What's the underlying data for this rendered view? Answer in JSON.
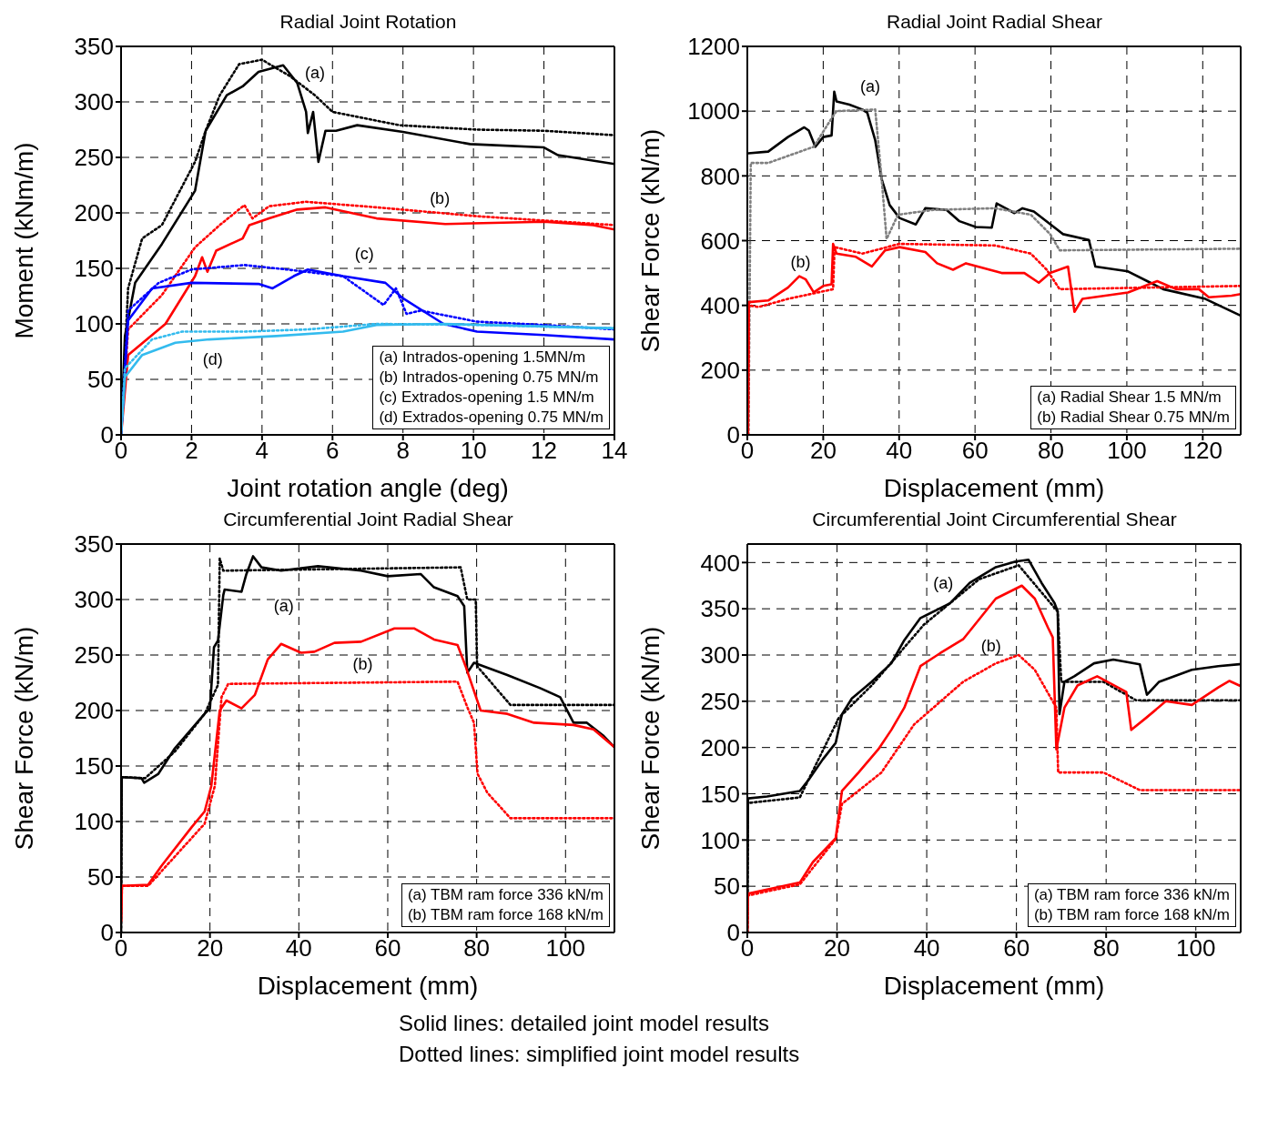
{
  "chart_data": [
    {
      "type": "line",
      "title": "Radial Joint Rotation",
      "xlabel": "Joint rotation angle (deg)",
      "ylabel": "Moment (kNm/m)",
      "xlim": [
        0,
        14
      ],
      "ylim": [
        0,
        350
      ],
      "xticks": [
        0,
        2,
        4,
        6,
        8,
        10,
        12,
        14
      ],
      "yticks": [
        0,
        50,
        100,
        150,
        200,
        250,
        300,
        350
      ],
      "grid": true,
      "series": [
        {
          "color": "#000000",
          "line_style": "solid",
          "x": [
            0,
            0.11,
            0.4,
            1.16,
            2.1,
            2.4,
            3.0,
            3.45,
            3.9,
            4.6,
            5.0,
            5.25,
            5.3,
            5.45,
            5.6,
            5.8,
            6.1,
            6.7,
            8.0,
            9.9,
            12.0,
            12.4,
            14
          ],
          "values": [
            0,
            89,
            137,
            172,
            220,
            274,
            306,
            314,
            327,
            333,
            317,
            291,
            272,
            291,
            246,
            274,
            274,
            279,
            273,
            262,
            259,
            252,
            244
          ]
        },
        {
          "color": "#000000",
          "line_style": "dotted",
          "x": [
            0,
            0.2,
            0.6,
            1.16,
            2.1,
            2.4,
            2.8,
            3.35,
            4.0,
            4.8,
            5.5,
            6.0,
            7.9,
            10.1,
            12,
            14
          ],
          "values": [
            0,
            132,
            177,
            189,
            246,
            274,
            306,
            334,
            338,
            323,
            306,
            291,
            279,
            275,
            274,
            270
          ]
        },
        {
          "color": "#ff0000",
          "line_style": "solid",
          "x": [
            0,
            0.2,
            1.26,
            2.1,
            2.3,
            2.45,
            2.7,
            3.45,
            3.64,
            4.2,
            5.0,
            5.8,
            7.25,
            9.2,
            12,
            13.4,
            14
          ],
          "values": [
            0,
            72,
            100,
            143,
            160,
            147,
            166,
            177,
            189,
            195,
            203,
            205,
            195,
            190,
            192,
            189,
            185
          ]
        },
        {
          "color": "#ff0000",
          "line_style": "dotted",
          "x": [
            0,
            0.2,
            1.16,
            2.1,
            2.8,
            3.5,
            3.73,
            4.2,
            5.25,
            7.25,
            10.1,
            14
          ],
          "values": [
            0,
            95,
            126,
            169,
            189,
            207,
            195,
            206,
            210,
            205,
            197,
            189
          ]
        },
        {
          "color": "#0000ff",
          "line_style": "solid",
          "x": [
            0,
            0.2,
            0.88,
            2.0,
            3.9,
            4.3,
            4.9,
            5.3,
            6.3,
            7.5,
            8.0,
            8.7,
            9.15,
            10.1,
            12,
            14
          ],
          "values": [
            0,
            103,
            132,
            137,
            136,
            132,
            143,
            149,
            143,
            137,
            123,
            109,
            100,
            93,
            90,
            86
          ]
        },
        {
          "color": "#0000ff",
          "line_style": "dotted",
          "x": [
            0,
            0.2,
            1.07,
            2.0,
            3.5,
            4.7,
            6.3,
            7.45,
            7.8,
            8.1,
            8.5,
            10.1,
            12,
            14
          ],
          "values": [
            0,
            112,
            137,
            149,
            153,
            149,
            143,
            117,
            132,
            109,
            112,
            102,
            99,
            95
          ]
        },
        {
          "color": "#33bbee",
          "line_style": "solid",
          "x": [
            0,
            0.11,
            0.6,
            1.54,
            2.5,
            4.4,
            6.3,
            7.25,
            9.15,
            14
          ],
          "values": [
            0,
            52,
            72,
            83,
            86,
            89,
            93,
            99,
            100,
            96
          ]
        },
        {
          "color": "#33bbee",
          "line_style": "dotted",
          "x": [
            0,
            0.11,
            0.88,
            1.73,
            3.45,
            5.3,
            7.25,
            10.1,
            14
          ],
          "values": [
            0,
            60,
            86,
            93,
            93,
            95,
            100,
            99,
            96
          ]
        }
      ],
      "annotations": [
        "(a) Intrados-opening 1.5MN/m",
        "(b) Intrados-opening 0.75 MN/m",
        "(c) Extrados-opening 1.5 MN/m",
        "(d) Extrados-opening 0.75 MN/m",
        "(a)",
        "(b)",
        "(c)",
        "(d)"
      ]
    },
    {
      "type": "line",
      "title": "Radial Joint Radial Shear",
      "xlabel": "Displacement (mm)",
      "ylabel": "Shear Force (kN/m)",
      "xlim": [
        0,
        130
      ],
      "ylim": [
        0,
        1200
      ],
      "xticks": [
        0,
        20,
        40,
        60,
        80,
        100,
        120
      ],
      "yticks": [
        0,
        200,
        400,
        600,
        800,
        1000,
        1200
      ],
      "grid": true,
      "series": [
        {
          "color": "#000000",
          "line_style": "solid",
          "x": [
            0.3,
            5.5,
            10.7,
            15,
            16.2,
            17.9,
            20,
            22.2,
            22.9,
            23.5,
            26.9,
            30.3,
            31.6,
            33.7,
            35.4,
            37.5,
            40.1,
            44.4,
            46.9,
            52.5,
            55.9,
            60.2,
            64.4,
            65.7,
            70.4,
            72.5,
            75.5,
            83.2,
            90,
            91.7,
            100.3,
            106.2,
            109.6,
            120.7,
            129.7
          ],
          "values": [
            870,
            875,
            920,
            950,
            940,
            890,
            920,
            925,
            1060,
            1030,
            1020,
            1005,
            995,
            910,
            790,
            710,
            670,
            650,
            700,
            695,
            660,
            642,
            640,
            715,
            685,
            700,
            690,
            620,
            602,
            520,
            505,
            470,
            450,
            420,
            370
          ]
        },
        {
          "color": "#808080",
          "line_style": "dotted",
          "x": [
            0.3,
            0.9,
            5.5,
            17.5,
            22.6,
            23.5,
            33.7,
            35.4,
            36.7,
            39.7,
            49,
            65.3,
            74.7,
            79.8,
            82.3,
            130
          ],
          "values": [
            0,
            840,
            840,
            890,
            985,
            1000,
            1005,
            790,
            605,
            680,
            695,
            700,
            680,
            620,
            570,
            575
          ]
        },
        {
          "color": "#ff0000",
          "line_style": "solid",
          "x": [
            0.2,
            0.4,
            5.5,
            10.7,
            13.7,
            15.4,
            17.5,
            20,
            22.2,
            22.6,
            23.5,
            28.6,
            32.8,
            36.3,
            40.1,
            46.9,
            50,
            54.2,
            57.6,
            67,
            73,
            76.8,
            79.8,
            84.5,
            86.2,
            88.3,
            100.3,
            108,
            113,
            119,
            121.6,
            127.6,
            130
          ],
          "values": [
            0,
            410,
            415,
            455,
            490,
            480,
            440,
            460,
            465,
            590,
            560,
            550,
            520,
            570,
            580,
            565,
            530,
            510,
            530,
            500,
            500,
            470,
            500,
            520,
            380,
            420,
            440,
            475,
            450,
            450,
            425,
            430,
            435
          ]
        },
        {
          "color": "#ff0000",
          "line_style": "dotted",
          "x": [
            0.2,
            0.4,
            3,
            10.7,
            22.6,
            23,
            30.3,
            40.1,
            65.3,
            74.7,
            78.9,
            82.3,
            130
          ],
          "values": [
            0,
            400,
            395,
            420,
            450,
            580,
            560,
            590,
            585,
            560,
            510,
            450,
            460
          ]
        }
      ],
      "annotations": [
        "(a) Radial Shear 1.5 MN/m",
        "(b) Radial Shear 0.75 MN/m",
        "(a)",
        "(b)"
      ]
    },
    {
      "type": "line",
      "title": "Circumferential Joint Radial Shear",
      "xlabel": "Displacement (mm)",
      "ylabel": "Shear Force (kN/m)",
      "xlim": [
        0,
        111
      ],
      "ylim": [
        0,
        350
      ],
      "xticks": [
        0,
        20,
        40,
        60,
        80,
        100
      ],
      "yticks": [
        0,
        50,
        100,
        150,
        200,
        250,
        300,
        350
      ],
      "grid": true,
      "series": [
        {
          "color": "#000000",
          "line_style": "solid",
          "x": [
            0,
            0.15,
            4.6,
            5.2,
            8.4,
            12.1,
            18.8,
            20,
            20.9,
            21.8,
            23,
            23.3,
            27.1,
            28.2,
            29.7,
            31.6,
            36,
            44.3,
            54,
            60,
            67.4,
            70.4,
            75.7,
            77.2,
            77.9,
            79.4,
            86.9,
            94.4,
            98.8,
            101.8,
            104.8,
            108.6,
            111
          ],
          "values": [
            0,
            140,
            139,
            135,
            143,
            166,
            197,
            202,
            257,
            263,
            304,
            309,
            307,
            323,
            339,
            329,
            326,
            330,
            326,
            321,
            323,
            311,
            303,
            294,
            234,
            243,
            232,
            220,
            212,
            189,
            189,
            177,
            167
          ]
        },
        {
          "color": "#000000",
          "line_style": "dotted",
          "x": [
            0,
            0.15,
            5.4,
            12.1,
            18.8,
            21.8,
            22.2,
            23,
            76.4,
            77.9,
            79.8,
            80.1,
            87.6,
            111
          ],
          "values": [
            0,
            140,
            139,
            163,
            197,
            223,
            337,
            326,
            329,
            300,
            300,
            240,
            205,
            205
          ]
        },
        {
          "color": "#ff0000",
          "line_style": "solid",
          "x": [
            0,
            0.2,
            6.1,
            9.1,
            15.9,
            18.8,
            20.3,
            22.2,
            23.7,
            27.1,
            30.1,
            33,
            36,
            40.5,
            43.5,
            48,
            54,
            61.5,
            65.9,
            70.4,
            75.7,
            77.5,
            80.9,
            86.9,
            92.9,
            101.8,
            106.3,
            111
          ],
          "values": [
            10,
            42,
            43,
            60,
            95,
            109,
            132,
            200,
            209,
            202,
            214,
            246,
            260,
            252,
            253,
            261,
            262,
            274,
            274,
            264,
            259,
            240,
            200,
            197,
            189,
            187,
            183,
            167
          ]
        },
        {
          "color": "#ff0000",
          "line_style": "dotted",
          "x": [
            0,
            0.2,
            6.1,
            18.8,
            21.1,
            22.6,
            24.1,
            75.7,
            77.9,
            79.4,
            80.2,
            82.4,
            87.6,
            111
          ],
          "values": [
            10,
            42,
            42,
            98,
            132,
            212,
            224,
            226,
            203,
            189,
            143,
            126,
            103,
            103
          ]
        }
      ],
      "annotations": [
        "(a) TBM ram force 336 kN/m",
        "(b) TBM ram force 168 kN/m",
        "(a)",
        "(b)"
      ]
    },
    {
      "type": "line",
      "title": "Circumferential Joint Circumferential Shear",
      "xlabel": "Displacement (mm)",
      "ylabel": "Shear Force (kN/m)",
      "xlim": [
        0,
        110
      ],
      "ylim": [
        0,
        420
      ],
      "xticks": [
        0,
        20,
        40,
        60,
        80,
        100
      ],
      "yticks": [
        0,
        50,
        100,
        150,
        200,
        250,
        300,
        350,
        400
      ],
      "grid": true,
      "series": [
        {
          "color": "#000000",
          "line_style": "solid",
          "x": [
            0,
            0.15,
            4.4,
            11.7,
            13.8,
            16.8,
            19.7,
            21.1,
            23.3,
            27.7,
            32.1,
            35,
            38.6,
            45.2,
            49.6,
            55.4,
            59.8,
            62.7,
            65.6,
            68.5,
            69.2,
            69.6,
            70.7,
            72.9,
            77.3,
            81.6,
            87.5,
            89.1,
            91.8,
            99.1,
            105,
            109.7
          ],
          "values": [
            0,
            145,
            147,
            153,
            166,
            187,
            205,
            236,
            253,
            271,
            291,
            316,
            340,
            356,
            378,
            395,
            401,
            403,
            378,
            356,
            347,
            236,
            271,
            277,
            291,
            295,
            290,
            257,
            271,
            284,
            288,
            290
          ]
        },
        {
          "color": "#000000",
          "line_style": "dotted",
          "x": [
            0,
            0.15,
            11.7,
            20.4,
            27.7,
            39.4,
            51.7,
            60.5,
            69.2,
            70,
            79.4,
            86.7,
            109.7
          ],
          "values": [
            0,
            140,
            146,
            232,
            267,
            333,
            382,
            397,
            347,
            271,
            271,
            251,
            251
          ]
        },
        {
          "color": "#ff0000",
          "line_style": "solid",
          "x": [
            0,
            0.15,
            11.7,
            14.6,
            19.7,
            21.1,
            24.8,
            29.2,
            32.1,
            35,
            38.6,
            43,
            48.1,
            55.4,
            61.2,
            64.1,
            67,
            68.1,
            68.9,
            70.7,
            73.6,
            78,
            84.5,
            85.6,
            88.9,
            93.3,
            99.1,
            105,
            107.5,
            109.7
          ],
          "values": [
            0,
            42,
            54,
            76,
            102,
            153,
            173,
            198,
            219,
            243,
            288,
            302,
            317,
            361,
            375,
            361,
            330,
            319,
            198,
            243,
            267,
            277,
            260,
            219,
            232,
            250,
            246,
            265,
            272,
            267
          ]
        },
        {
          "color": "#ff0000",
          "line_style": "dotted",
          "x": [
            0,
            0.15,
            11.7,
            19.7,
            21.1,
            29.9,
            37.2,
            48.1,
            55.4,
            60.5,
            64.1,
            68.9,
            69.3,
            79.4,
            87.5,
            109.7
          ],
          "values": [
            0,
            40,
            52,
            101,
            139,
            173,
            225,
            271,
            291,
            300,
            284,
            243,
            173,
            173,
            154,
            154
          ]
        }
      ],
      "annotations": [
        "(a) TBM ram force 336 kN/m",
        "(b) TBM ram force 168 kN/m",
        "(a)",
        "(b)"
      ]
    },
    {
      "type": "other",
      "annotations": [
        "Solid lines: detailed joint model results",
        "Dotted lines: simplified joint model results"
      ]
    }
  ]
}
